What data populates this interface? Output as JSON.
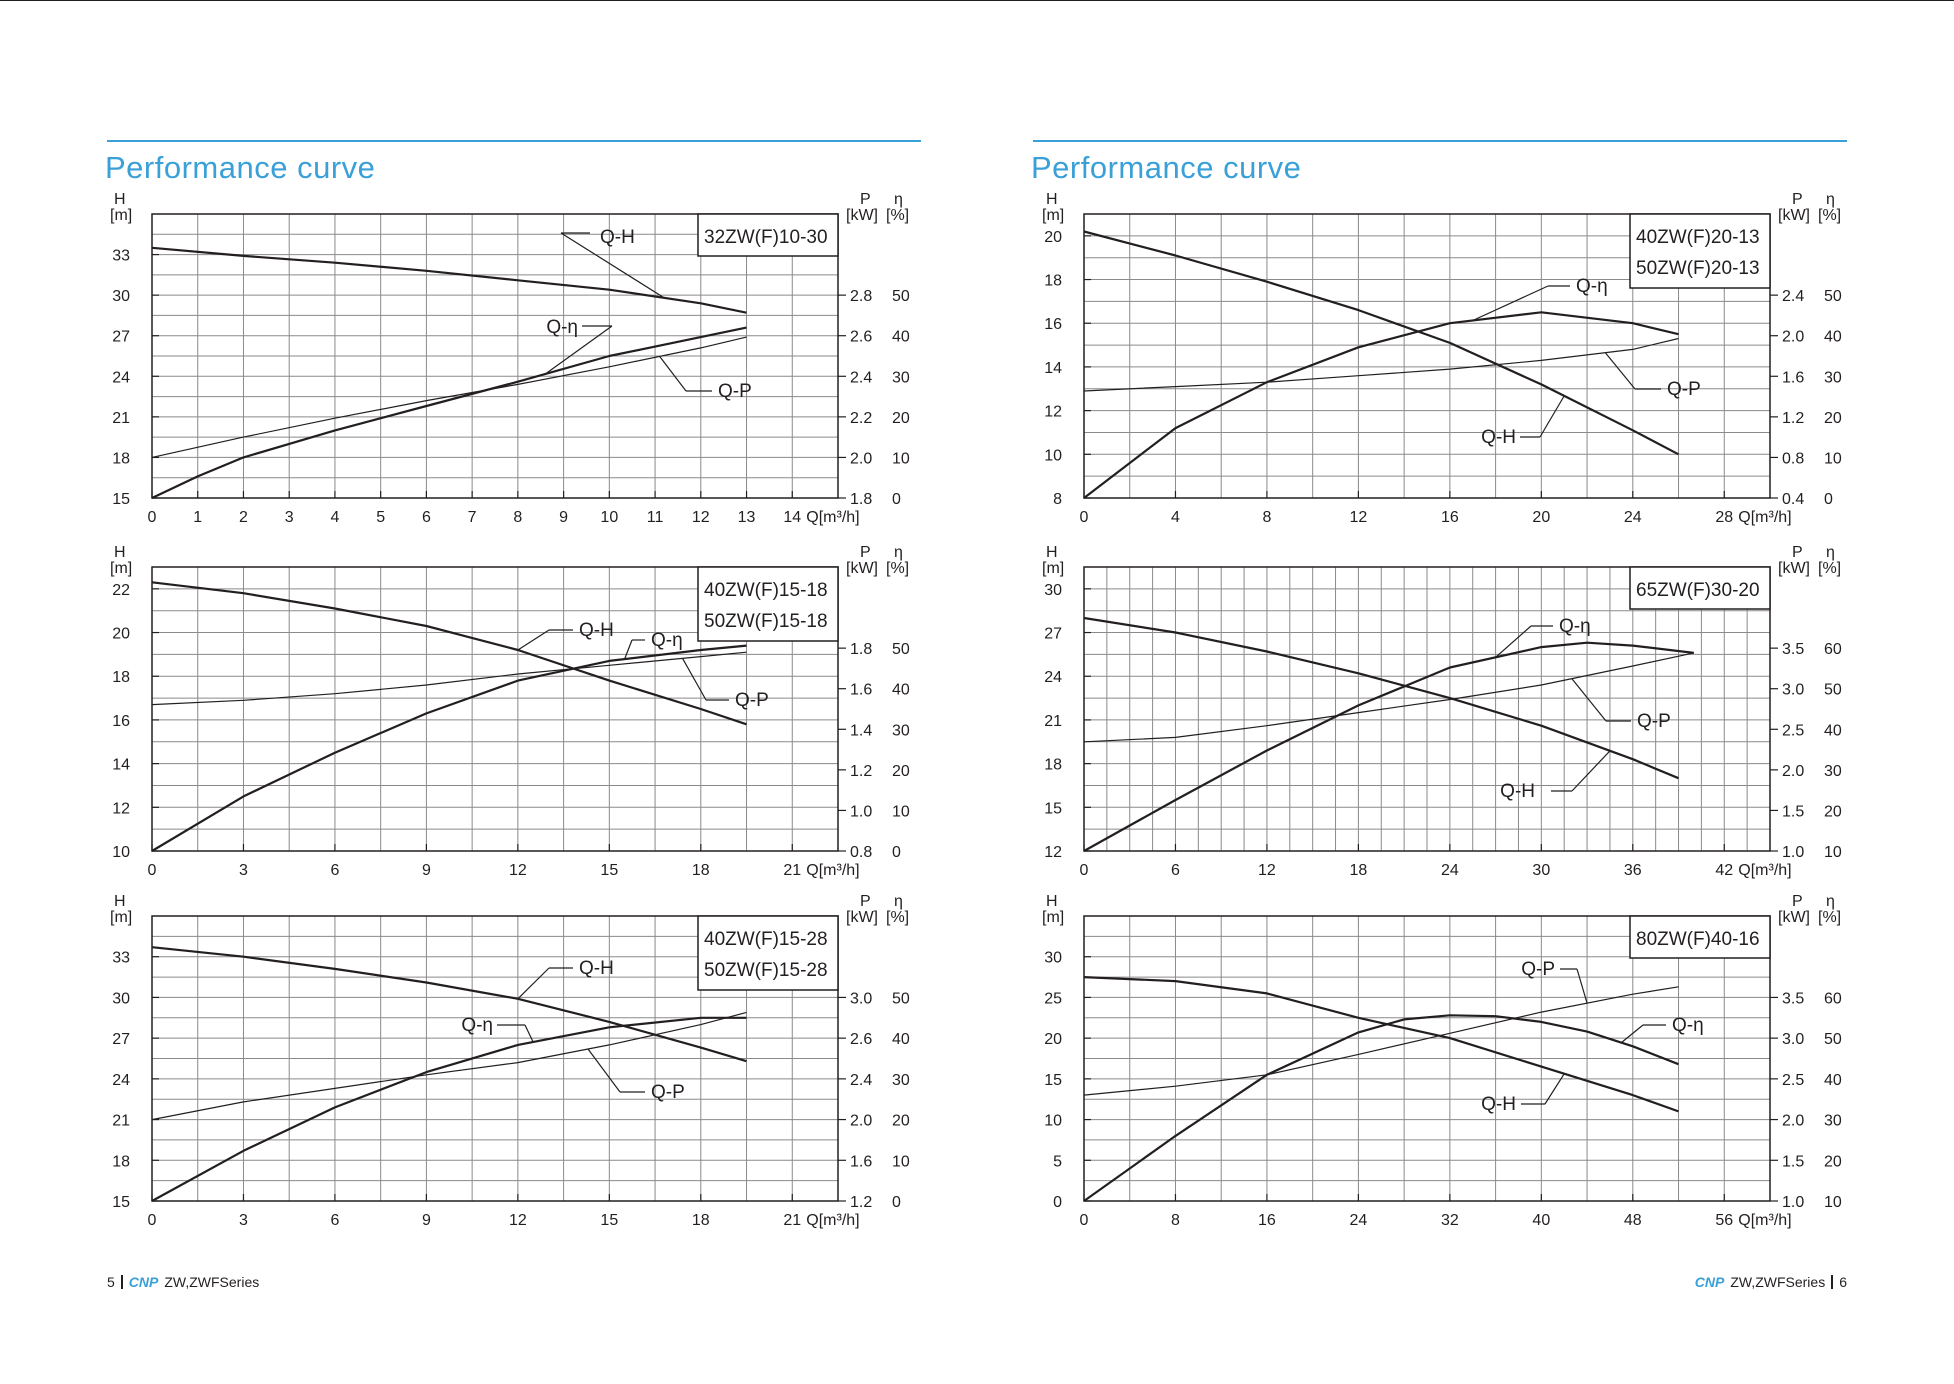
{
  "page": {
    "left_heading": "Performance curve",
    "right_heading": "Performance curve",
    "footer_left_page": "5",
    "footer_left_brand": "CNP",
    "footer_left_series": "ZW,ZWFSeries",
    "footer_right_brand": "CNP",
    "footer_right_series": "ZW,ZWFSeries",
    "footer_right_page": "6"
  },
  "chart_data": [
    {
      "type": "line",
      "models": [
        "32ZW(F)10-30"
      ],
      "xlabel": "Q[m³/h]",
      "ylabel_left": "H",
      "ylabel_left_unit": "[m]",
      "ylabel_p": "P",
      "ylabel_p_unit": "[kW]",
      "ylabel_eta": "η",
      "ylabel_eta_unit": "[%]",
      "xlim": [
        0,
        15
      ],
      "x_ticks": [
        0,
        1,
        2,
        3,
        4,
        5,
        6,
        7,
        8,
        9,
        10,
        11,
        12,
        13,
        14
      ],
      "h_lim": [
        15,
        36
      ],
      "h_ticks": [
        15,
        18,
        21,
        24,
        27,
        30,
        33
      ],
      "p_ticks": [
        "1.8",
        "2.0",
        "2.2",
        "2.4",
        "2.6",
        "2.8"
      ],
      "eta_ticks": [
        "0",
        "10",
        "20",
        "30",
        "40",
        "50"
      ],
      "series": [
        {
          "name": "Q-H",
          "bold": true,
          "x": [
            0,
            2,
            4,
            6,
            8,
            10,
            12,
            13
          ],
          "y": [
            33.5,
            32.9,
            32.4,
            31.8,
            31.1,
            30.4,
            29.4,
            28.7
          ]
        },
        {
          "name": "Q-η",
          "bold": true,
          "x": [
            0,
            1,
            2,
            4,
            6,
            8,
            10,
            12,
            13
          ],
          "y": [
            15,
            16.6,
            18,
            20,
            21.8,
            23.6,
            25.5,
            26.9,
            27.6
          ]
        },
        {
          "name": "Q-P",
          "bold": false,
          "x": [
            0,
            2,
            4,
            6,
            8,
            10,
            12,
            13
          ],
          "y": [
            18,
            19.5,
            20.9,
            22.2,
            23.4,
            24.7,
            26.1,
            26.9
          ]
        }
      ],
      "callouts": [
        "Q-H",
        "Q-η",
        "Q-P"
      ]
    },
    {
      "type": "line",
      "models": [
        "40ZW(F)15-18",
        "50ZW(F)15-18"
      ],
      "xlabel": "Q[m³/h]",
      "ylabel_left": "H",
      "ylabel_left_unit": "[m]",
      "ylabel_p": "P",
      "ylabel_p_unit": "[kW]",
      "ylabel_eta": "η",
      "ylabel_eta_unit": "[%]",
      "xlim": [
        0,
        22.5
      ],
      "x_ticks": [
        0,
        3,
        6,
        9,
        12,
        15,
        18,
        21
      ],
      "h_lim": [
        10,
        23
      ],
      "h_ticks": [
        10,
        12,
        14,
        16,
        18,
        20,
        22
      ],
      "p_ticks": [
        "0.8",
        "1.0",
        "1.2",
        "1.4",
        "1.6",
        "1.8"
      ],
      "eta_ticks": [
        "0",
        "10",
        "20",
        "30",
        "40",
        "50"
      ],
      "series": [
        {
          "name": "Q-H",
          "bold": true,
          "x": [
            0,
            3,
            6,
            9,
            12,
            15,
            18,
            19.5
          ],
          "y": [
            22.3,
            21.8,
            21.1,
            20.3,
            19.2,
            17.8,
            16.5,
            15.8
          ]
        },
        {
          "name": "Q-η",
          "bold": true,
          "x": [
            0,
            3,
            6,
            9,
            12,
            15,
            18,
            19.5
          ],
          "y": [
            10,
            12.5,
            14.5,
            16.3,
            17.8,
            18.7,
            19.2,
            19.4
          ]
        },
        {
          "name": "Q-P",
          "bold": false,
          "x": [
            0,
            3,
            6,
            9,
            12,
            15,
            18,
            19.5
          ],
          "y": [
            16.7,
            16.9,
            17.2,
            17.6,
            18.1,
            18.5,
            18.9,
            19.1
          ]
        }
      ],
      "callouts": [
        "Q-H",
        "Q-η",
        "Q-P"
      ]
    },
    {
      "type": "line",
      "models": [
        "40ZW(F)15-28",
        "50ZW(F)15-28"
      ],
      "xlabel": "Q[m³/h]",
      "ylabel_left": "H",
      "ylabel_left_unit": "[m]",
      "ylabel_p": "P",
      "ylabel_p_unit": "[kW]",
      "ylabel_eta": "η",
      "ylabel_eta_unit": "[%]",
      "xlim": [
        0,
        22.5
      ],
      "x_ticks": [
        0,
        3,
        6,
        9,
        12,
        15,
        18,
        21
      ],
      "h_lim": [
        15,
        36
      ],
      "h_ticks": [
        15,
        18,
        21,
        24,
        27,
        30,
        33
      ],
      "p_ticks": [
        "1.2",
        "1.6",
        "2.0",
        "2.4",
        "2.6",
        "3.0"
      ],
      "eta_ticks": [
        "0",
        "10",
        "20",
        "30",
        "40",
        "50"
      ],
      "series": [
        {
          "name": "Q-H",
          "bold": true,
          "x": [
            0,
            3,
            6,
            9,
            12,
            15,
            18,
            19.5
          ],
          "y": [
            33.7,
            33,
            32.1,
            31.1,
            29.9,
            28.2,
            26.3,
            25.3
          ]
        },
        {
          "name": "Q-η",
          "bold": true,
          "x": [
            0,
            3,
            6,
            9,
            12,
            15,
            18,
            19.5
          ],
          "y": [
            15,
            18.7,
            21.9,
            24.5,
            26.5,
            27.8,
            28.5,
            28.5
          ]
        },
        {
          "name": "Q-P",
          "bold": false,
          "x": [
            0,
            3,
            6,
            9,
            12,
            15,
            18,
            19.5
          ],
          "y": [
            21,
            22.3,
            23.3,
            24.3,
            25.2,
            26.5,
            28,
            28.9
          ]
        }
      ],
      "callouts": [
        "Q-H",
        "Q-η",
        "Q-P"
      ]
    },
    {
      "type": "line",
      "models": [
        "40ZW(F)20-13",
        "50ZW(F)20-13"
      ],
      "xlabel": "Q[m³/h]",
      "ylabel_left": "H",
      "ylabel_left_unit": "[m]",
      "ylabel_p": "P",
      "ylabel_p_unit": "[kW]",
      "ylabel_eta": "η",
      "ylabel_eta_unit": "[%]",
      "xlim": [
        0,
        30
      ],
      "x_ticks": [
        0,
        4,
        8,
        12,
        16,
        20,
        24,
        28
      ],
      "h_lim": [
        8,
        21
      ],
      "h_ticks": [
        8,
        10,
        12,
        14,
        16,
        18,
        20
      ],
      "p_ticks": [
        "0.4",
        "0.8",
        "1.2",
        "1.6",
        "2.0",
        "2.4"
      ],
      "eta_ticks": [
        "0",
        "10",
        "20",
        "30",
        "40",
        "50"
      ],
      "series": [
        {
          "name": "Q-H",
          "bold": true,
          "x": [
            0,
            4,
            8,
            12,
            16,
            20,
            24,
            26
          ],
          "y": [
            20.2,
            19.1,
            17.9,
            16.6,
            15.1,
            13.2,
            11.1,
            10
          ]
        },
        {
          "name": "Q-η",
          "bold": true,
          "x": [
            0,
            4,
            8,
            12,
            16,
            20,
            24,
            26
          ],
          "y": [
            8,
            11.2,
            13.3,
            14.9,
            16,
            16.5,
            16,
            15.5
          ]
        },
        {
          "name": "Q-P",
          "bold": false,
          "x": [
            0,
            4,
            8,
            12,
            16,
            20,
            24,
            26
          ],
          "y": [
            12.9,
            13.1,
            13.3,
            13.6,
            13.9,
            14.3,
            14.8,
            15.3
          ]
        }
      ],
      "callouts": [
        "Q-η",
        "Q-P",
        "Q-H"
      ]
    },
    {
      "type": "line",
      "models": [
        "65ZW(F)30-20"
      ],
      "xlabel": "Q[m³/h]",
      "ylabel_left": "H",
      "ylabel_left_unit": "[m]",
      "ylabel_p": "P",
      "ylabel_p_unit": "[kW]",
      "ylabel_eta": "η",
      "ylabel_eta_unit": "[%]",
      "xlim": [
        0,
        45
      ],
      "x_ticks": [
        0,
        6,
        12,
        18,
        24,
        30,
        36,
        42
      ],
      "h_lim": [
        12,
        31.5
      ],
      "h_ticks": [
        12,
        15,
        18,
        21,
        24,
        27,
        30
      ],
      "p_ticks": [
        "1.0",
        "1.5",
        "2.0",
        "2.5",
        "3.0",
        "3.5"
      ],
      "eta_ticks": [
        "10",
        "20",
        "30",
        "40",
        "50",
        "60"
      ],
      "series": [
        {
          "name": "Q-H",
          "bold": true,
          "x": [
            0,
            6,
            12,
            18,
            24,
            30,
            36,
            39
          ],
          "y": [
            28,
            27,
            25.7,
            24.2,
            22.5,
            20.6,
            18.3,
            17
          ]
        },
        {
          "name": "Q-η",
          "bold": true,
          "x": [
            0,
            6,
            12,
            18,
            24,
            30,
            33,
            36,
            40
          ],
          "y": [
            12,
            15.5,
            18.9,
            22,
            24.6,
            26,
            26.3,
            26.1,
            25.6
          ]
        },
        {
          "name": "Q-P",
          "bold": false,
          "x": [
            0,
            6,
            12,
            18,
            24,
            30,
            36,
            40
          ],
          "y": [
            19.5,
            19.8,
            20.6,
            21.5,
            22.4,
            23.4,
            24.7,
            25.6
          ]
        }
      ],
      "callouts": [
        "Q-η",
        "Q-P",
        "Q-H"
      ]
    },
    {
      "type": "line",
      "models": [
        "80ZW(F)40-16"
      ],
      "xlabel": "Q[m³/h]",
      "ylabel_left": "H",
      "ylabel_left_unit": "[m]",
      "ylabel_p": "P",
      "ylabel_p_unit": "[kW]",
      "ylabel_eta": "η",
      "ylabel_eta_unit": "[%]",
      "xlim": [
        0,
        60
      ],
      "x_ticks": [
        0,
        8,
        16,
        24,
        32,
        40,
        48,
        56
      ],
      "h_lim": [
        0,
        35
      ],
      "h_ticks": [
        0,
        5,
        10,
        15,
        20,
        25,
        30
      ],
      "p_ticks": [
        "1.0",
        "1.5",
        "2.0",
        "2.5",
        "3.0",
        "3.5"
      ],
      "eta_ticks": [
        "10",
        "20",
        "30",
        "40",
        "50",
        "60"
      ],
      "series": [
        {
          "name": "Q-H",
          "bold": true,
          "x": [
            0,
            8,
            16,
            24,
            32,
            40,
            48,
            52
          ],
          "y": [
            27.5,
            27,
            25.5,
            22.5,
            20,
            16.5,
            13,
            11
          ]
        },
        {
          "name": "Q-η",
          "bold": true,
          "x": [
            0,
            8,
            16,
            24,
            28,
            32,
            36,
            40,
            44,
            48,
            52
          ],
          "y": [
            0,
            8,
            15.5,
            20.7,
            22.3,
            22.8,
            22.7,
            22,
            20.8,
            19,
            16.8
          ]
        },
        {
          "name": "Q-P",
          "bold": false,
          "x": [
            0,
            8,
            16,
            24,
            32,
            40,
            48,
            52
          ],
          "y": [
            13,
            14.1,
            15.5,
            18,
            20.6,
            23.2,
            25.4,
            26.3
          ]
        }
      ],
      "callouts": [
        "Q-P",
        "Q-η",
        "Q-H"
      ]
    }
  ]
}
